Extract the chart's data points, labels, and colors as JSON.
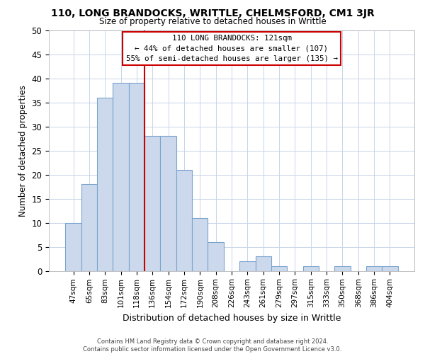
{
  "title": "110, LONG BRANDOCKS, WRITTLE, CHELMSFORD, CM1 3JR",
  "subtitle": "Size of property relative to detached houses in Writtle",
  "xlabel": "Distribution of detached houses by size in Writtle",
  "ylabel": "Number of detached properties",
  "bar_labels": [
    "47sqm",
    "65sqm",
    "83sqm",
    "101sqm",
    "118sqm",
    "136sqm",
    "154sqm",
    "172sqm",
    "190sqm",
    "208sqm",
    "226sqm",
    "243sqm",
    "261sqm",
    "279sqm",
    "297sqm",
    "315sqm",
    "333sqm",
    "350sqm",
    "368sqm",
    "386sqm",
    "404sqm"
  ],
  "bar_values": [
    10,
    18,
    36,
    39,
    39,
    28,
    28,
    21,
    11,
    6,
    0,
    2,
    3,
    1,
    0,
    1,
    0,
    1,
    0,
    1,
    1
  ],
  "bar_color": "#ccd9ed",
  "bar_edge_color": "#7ba3cc",
  "vline_index": 4,
  "vline_color": "#cc0000",
  "ylim": [
    0,
    50
  ],
  "yticks": [
    0,
    5,
    10,
    15,
    20,
    25,
    30,
    35,
    40,
    45,
    50
  ],
  "annotation_title": "110 LONG BRANDOCKS: 121sqm",
  "annotation_line1": "← 44% of detached houses are smaller (107)",
  "annotation_line2": "55% of semi-detached houses are larger (135) →",
  "annotation_box_color": "#ffffff",
  "annotation_box_edge": "#cc0000",
  "footer_line1": "Contains HM Land Registry data © Crown copyright and database right 2024.",
  "footer_line2": "Contains public sector information licensed under the Open Government Licence v3.0.",
  "bg_color": "#ffffff",
  "grid_color": "#c8d4e8"
}
